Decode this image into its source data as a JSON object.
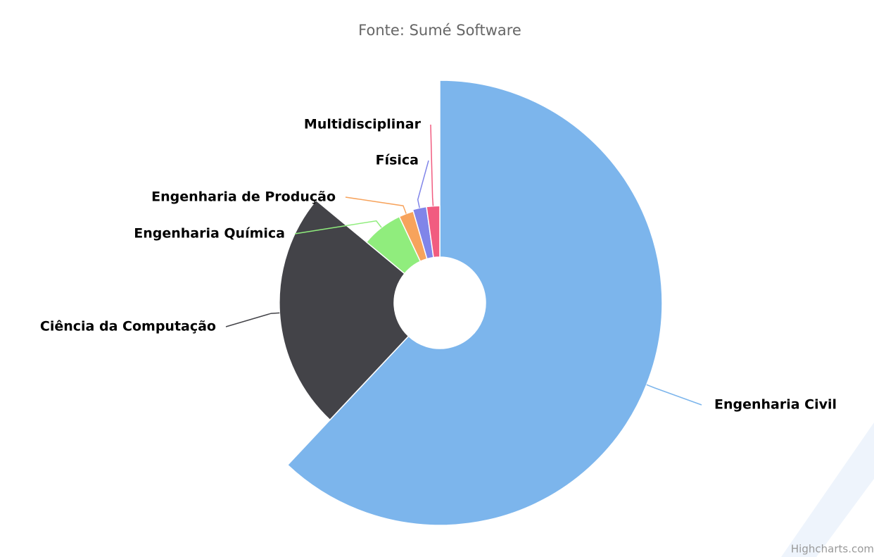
{
  "chart_data": {
    "type": "variablepie",
    "subtitle": "Fonte: Sumé Software",
    "credits": "Highcharts.com",
    "categories": [
      "Engenharia Civil",
      "Ciência da Computação",
      "Engenharia Química",
      "Engenharia de Produção",
      "Física",
      "Multidisciplinar"
    ],
    "values": [
      62,
      24,
      7,
      2.5,
      2.3,
      2.2
    ],
    "z": [
      100,
      65,
      28,
      28,
      29,
      29
    ],
    "colors": [
      "#7cb5ec",
      "#434348",
      "#90ed7d",
      "#f7a35c",
      "#8085e9",
      "#f15c80"
    ]
  }
}
